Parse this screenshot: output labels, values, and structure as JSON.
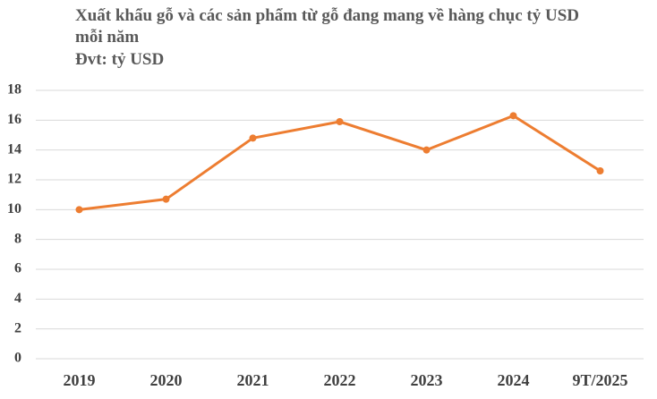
{
  "chart_data": {
    "type": "line",
    "title": "Xuất khẩu gỗ và các sản phẩm từ gỗ đang mang về hàng chục tỷ USD mỗi năm",
    "subtitle": "Đvt: tỷ USD",
    "categories": [
      "2019",
      "2020",
      "2021",
      "2022",
      "2023",
      "2024",
      "9T/2025"
    ],
    "values": [
      10.0,
      10.7,
      14.8,
      15.9,
      14.0,
      16.3,
      12.6
    ],
    "color": "#ED7D31",
    "ylim": [
      0,
      18
    ],
    "yticks": [
      0,
      2,
      4,
      6,
      8,
      10,
      12,
      14,
      16,
      18
    ],
    "grid": true
  }
}
